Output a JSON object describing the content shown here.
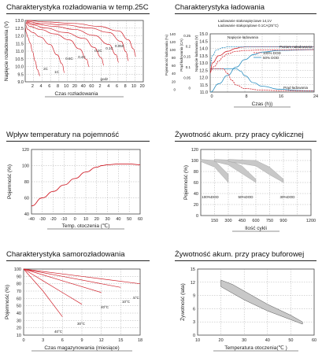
{
  "colors": {
    "red": "#d0202a",
    "blue": "#2a8ec0",
    "grid": "#9a9a9a",
    "text": "#222222",
    "band": "#c8c8c8"
  },
  "chart_data": [
    {
      "id": "discharge",
      "type": "line",
      "title": "Charakterystyka rozładowania w temp.25C",
      "ylabel": "Napięcie rozładowania (V)",
      "xlabel": "Czas rozładowania",
      "x_unit_label": "godz",
      "y_ticks": [
        "13.0",
        "12.5",
        "12.0",
        "11.5",
        "11.0",
        "10.5",
        "10.0",
        "9.5",
        "9.0"
      ],
      "x_ticks": [
        "2",
        "4",
        "6",
        "8",
        "10",
        "20",
        "40",
        "60",
        "2",
        "4",
        "6",
        "8",
        "10",
        "20"
      ],
      "curve_labels": [
        "2C",
        "1C",
        "0.6C",
        "0.4C",
        "0.2C",
        "0.1C",
        "0.05C"
      ],
      "series": [
        {
          "name": "2C",
          "x": [
            0.04,
            0.2,
            0.5,
            1,
            1.5,
            2,
            2.5,
            3
          ],
          "y": [
            12.6,
            12.3,
            12.0,
            11.6,
            11.0,
            10.4,
            9.8,
            9.4
          ]
        },
        {
          "name": "1C",
          "x": [
            0.06,
            0.5,
            1.5,
            3,
            5,
            6.5,
            7.5,
            8
          ],
          "y": [
            12.8,
            12.5,
            12.3,
            12.0,
            11.5,
            10.8,
            10.2,
            9.6
          ]
        },
        {
          "name": "0.6C",
          "x": [
            0.1,
            1,
            3,
            6,
            9,
            11,
            12.5,
            13
          ],
          "y": [
            12.9,
            12.7,
            12.5,
            12.2,
            11.8,
            11.2,
            10.5,
            10.0
          ]
        },
        {
          "name": "0.4C",
          "x": [
            0.15,
            1.5,
            4,
            8,
            12,
            14,
            15.5,
            16
          ],
          "y": [
            12.95,
            12.8,
            12.6,
            12.3,
            11.9,
            11.3,
            10.6,
            10.1
          ]
        },
        {
          "name": "0.2C",
          "x": [
            0.2,
            2,
            6,
            10,
            14,
            17,
            18.5,
            19
          ],
          "y": [
            13.0,
            12.85,
            12.7,
            12.5,
            12.1,
            11.5,
            10.8,
            10.3
          ]
        },
        {
          "name": "0.1C",
          "x": [
            0.3,
            3,
            8,
            13,
            17,
            19.5,
            20.5,
            21
          ],
          "y": [
            13.05,
            12.9,
            12.8,
            12.6,
            12.3,
            11.7,
            11.0,
            10.4
          ]
        },
        {
          "name": "0.05C",
          "x": [
            0.4,
            4,
            10,
            15,
            19,
            21,
            22,
            22.5
          ],
          "y": [
            13.1,
            13.0,
            12.9,
            12.7,
            12.4,
            11.8,
            11.2,
            10.7
          ]
        }
      ]
    },
    {
      "id": "charging",
      "type": "line",
      "title": "Charakterystyka ładowania",
      "xlabel": "Czas (h))",
      "legend_lines": [
        "Ładowanie stałonapięciowe 14,1V",
        "Ładowanie stałoprądowe 0.1CA(25°C)"
      ],
      "y_left_label": "Pojemność ładowania (%)",
      "y_mid_label": "Prąd ładowania (CA)",
      "y_right_label": "Napięcie ładowania (V)",
      "y_left_ticks": [
        "140",
        "120",
        "100",
        "80",
        "60",
        "40",
        "20",
        "0"
      ],
      "y_mid_ticks": [
        "0.25",
        "0.2",
        "0.15",
        "0.1",
        "0.05",
        "0"
      ],
      "y_right_ticks": [
        "15.0",
        "14.5",
        "14.0",
        "13.5",
        "13.0",
        "12.5",
        "12.0",
        "11.5",
        "11.0"
      ],
      "x_ticks": [
        "0",
        "8",
        "16",
        "24"
      ],
      "annotations": [
        "Napięcie ładowania",
        "Poziom naładowania",
        "Prąd ładowania"
      ],
      "legend": [
        "100% DOD",
        "50% DOD"
      ],
      "series": [
        {
          "name": "voltage_100",
          "color": "red",
          "x": [
            0,
            0.5,
            2,
            4,
            6,
            7,
            8,
            10,
            16,
            24
          ],
          "y": [
            12.3,
            13.0,
            13.5,
            13.8,
            14.0,
            14.08,
            14.1,
            14.1,
            14.1,
            14.1
          ]
        },
        {
          "name": "voltage_50",
          "color": "blue",
          "x": [
            0,
            0.5,
            1.5,
            3,
            4,
            5,
            8,
            16,
            24
          ],
          "y": [
            12.8,
            13.5,
            13.9,
            14.05,
            14.1,
            14.1,
            14.1,
            14.1,
            14.1
          ]
        },
        {
          "name": "capacity_100",
          "color": "blue",
          "x": [
            0,
            2,
            4,
            6,
            8,
            10,
            12,
            16,
            24
          ],
          "y": [
            0,
            20,
            40,
            60,
            78,
            90,
            96,
            100,
            102
          ]
        },
        {
          "name": "capacity_50",
          "color": "red",
          "x": [
            0,
            1,
            2,
            3,
            4,
            6,
            8,
            12,
            24
          ],
          "y": [
            50,
            62,
            75,
            85,
            92,
            98,
            100,
            101,
            102
          ]
        },
        {
          "name": "current_100",
          "color": "blue",
          "x": [
            0,
            6,
            7,
            8,
            10,
            12,
            16,
            20,
            24
          ],
          "y": [
            0.1,
            0.1,
            0.09,
            0.07,
            0.04,
            0.025,
            0.012,
            0.007,
            0.005
          ]
        },
        {
          "name": "current_50",
          "color": "red",
          "x": [
            0,
            3,
            4,
            5,
            6,
            8,
            12,
            16,
            24
          ],
          "y": [
            0.1,
            0.1,
            0.08,
            0.05,
            0.03,
            0.015,
            0.008,
            0.006,
            0.005
          ]
        }
      ]
    },
    {
      "id": "temperature",
      "type": "line",
      "title": "Wpływ temperatury na pojemność",
      "ylabel": "Pojemność (%)",
      "xlabel": "Temp. otoczenia (℃)",
      "x_ticks": [
        "-40",
        "-30",
        "-20",
        "-10",
        "0",
        "10",
        "20",
        "30",
        "40",
        "50",
        "60"
      ],
      "y_ticks": [
        "120",
        "100",
        "80",
        "60",
        "40"
      ],
      "series": [
        {
          "name": "capacity",
          "x": [
            -40,
            -30,
            -20,
            -10,
            0,
            10,
            20,
            25,
            30,
            40,
            50,
            60
          ],
          "y": [
            50,
            60,
            68,
            76,
            84,
            92,
            98,
            100,
            101,
            102,
            102,
            101
          ]
        }
      ]
    },
    {
      "id": "cycle_life",
      "type": "area",
      "title": "Żywotność akum. przy pracy cyklicznej",
      "ylabel": "Pojemność (%)",
      "xlabel": "Ilość cykli",
      "x_ticks": [
        "150",
        "300",
        "450",
        "600",
        "750",
        "900",
        "1200"
      ],
      "y_ticks": [
        "120",
        "100",
        "80",
        "60",
        "40",
        "20",
        "0"
      ],
      "band_labels": [
        "100%DOD",
        "50%DOD",
        "30%DOD"
      ],
      "bands": [
        {
          "name": "100%DOD",
          "x": [
            0,
            150,
            300
          ],
          "upper": [
            102,
            100,
            75
          ],
          "lower": [
            98,
            88,
            60
          ]
        },
        {
          "name": "50%DOD",
          "x": [
            150,
            300,
            450,
            600
          ],
          "upper": [
            102,
            101,
            90,
            66
          ],
          "lower": [
            98,
            92,
            76,
            60
          ]
        },
        {
          "name": "30%DOD",
          "x": [
            300,
            600,
            750,
            900
          ],
          "upper": [
            102,
            100,
            88,
            66
          ],
          "lower": [
            98,
            90,
            74,
            60
          ]
        }
      ]
    },
    {
      "id": "self_discharge",
      "type": "line",
      "title": "Charakterystyka samorozładowania",
      "ylabel": "Pojemność (%)",
      "xlabel": "Czas magazynowania (miesiące)",
      "x_ticks": [
        "0",
        "3",
        "6",
        "9",
        "12",
        "15",
        "18"
      ],
      "y_ticks": [
        "100",
        "90",
        "80",
        "70",
        "60",
        "50",
        "40",
        "30",
        "20",
        "10"
      ],
      "curve_labels": [
        "40°C",
        "30°C",
        "20°C",
        "10°C",
        "5°C"
      ],
      "series": [
        {
          "name": "40°C",
          "x": [
            0,
            3,
            6
          ],
          "y": [
            100,
            70,
            35
          ]
        },
        {
          "name": "30°C",
          "x": [
            0,
            3,
            6,
            9
          ],
          "y": [
            100,
            84,
            68,
            52
          ]
        },
        {
          "name": "20°C",
          "x": [
            0,
            6,
            12
          ],
          "y": [
            100,
            84,
            68
          ]
        },
        {
          "name": "10°C",
          "x": [
            0,
            6,
            12,
            15
          ],
          "y": [
            100,
            90,
            80,
            75
          ]
        },
        {
          "name": "5°C",
          "x": [
            0,
            9,
            18
          ],
          "y": [
            100,
            90,
            80
          ]
        }
      ]
    },
    {
      "id": "float_life",
      "type": "area",
      "title": "Żywotność akum. przy pracy buforowej",
      "ylabel": "Żywotność (lata)",
      "xlabel": "Temperatura otoczenia(℃ )",
      "x_ticks": [
        "10",
        "20",
        "30",
        "40",
        "50",
        "60"
      ],
      "y_ticks": [
        "15",
        "12",
        "9",
        "6",
        "3",
        "0"
      ],
      "band": {
        "x": [
          20,
          25,
          30,
          40,
          50,
          55
        ],
        "upper": [
          12.5,
          11.5,
          10,
          7,
          4.5,
          3
        ],
        "lower": [
          11,
          9.5,
          8,
          5.5,
          3.5,
          2.5
        ]
      }
    }
  ]
}
